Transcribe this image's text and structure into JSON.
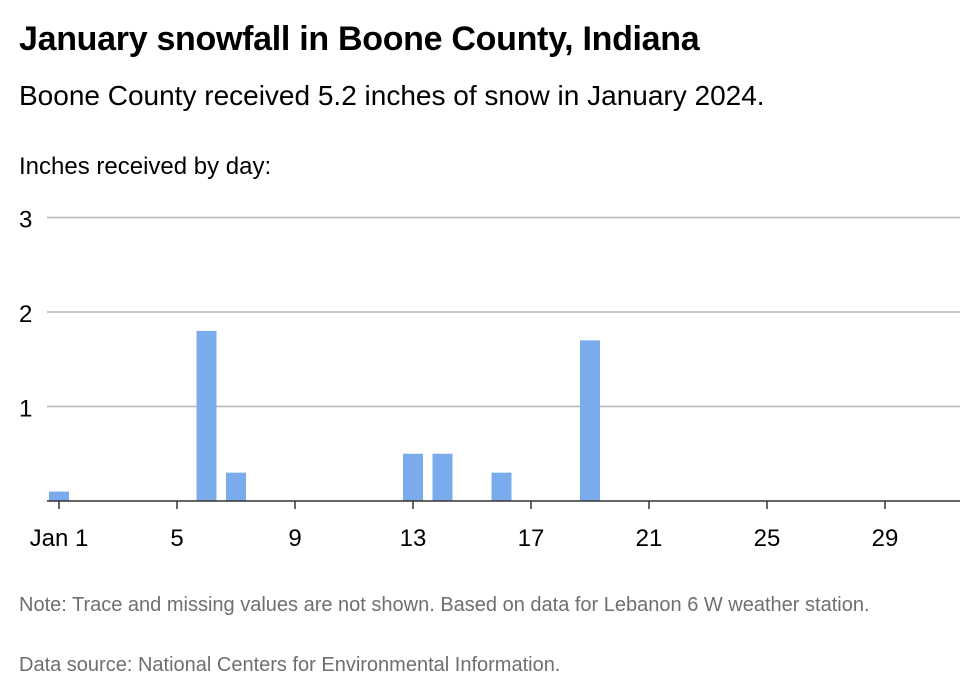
{
  "title": "January snowfall in Boone County, Indiana",
  "subtitle": "Boone County received 5.2 inches of snow in January 2024.",
  "note": "Note: Trace and missing values are not shown. Based on data for Lebanon 6 W weather station.",
  "source": "Data source: National Centers for Environmental Information.",
  "colors": {
    "bar": "#7aaced",
    "grid": "#b5b5b5",
    "axis": "#333333",
    "text": "#000000",
    "footnote": "#6f6f6f"
  },
  "chart_data": {
    "type": "bar",
    "title": "January snowfall in Boone County, Indiana",
    "ylabel": "Inches received by day:",
    "xlabel": "",
    "xlim": [
      1,
      31
    ],
    "ylim": [
      0,
      3
    ],
    "grid": true,
    "y_ticks": [
      1,
      2,
      3
    ],
    "x_ticks": [
      {
        "day": 1,
        "label": "Jan 1"
      },
      {
        "day": 5,
        "label": "5"
      },
      {
        "day": 9,
        "label": "9"
      },
      {
        "day": 13,
        "label": "13"
      },
      {
        "day": 17,
        "label": "17"
      },
      {
        "day": 21,
        "label": "21"
      },
      {
        "day": 25,
        "label": "25"
      },
      {
        "day": 29,
        "label": "29"
      }
    ],
    "bars": [
      {
        "day": 1,
        "value": 0.1
      },
      {
        "day": 6,
        "value": 1.8
      },
      {
        "day": 7,
        "value": 0.3
      },
      {
        "day": 13,
        "value": 0.5
      },
      {
        "day": 14,
        "value": 0.5
      },
      {
        "day": 16,
        "value": 0.3
      },
      {
        "day": 19,
        "value": 1.7
      }
    ]
  }
}
